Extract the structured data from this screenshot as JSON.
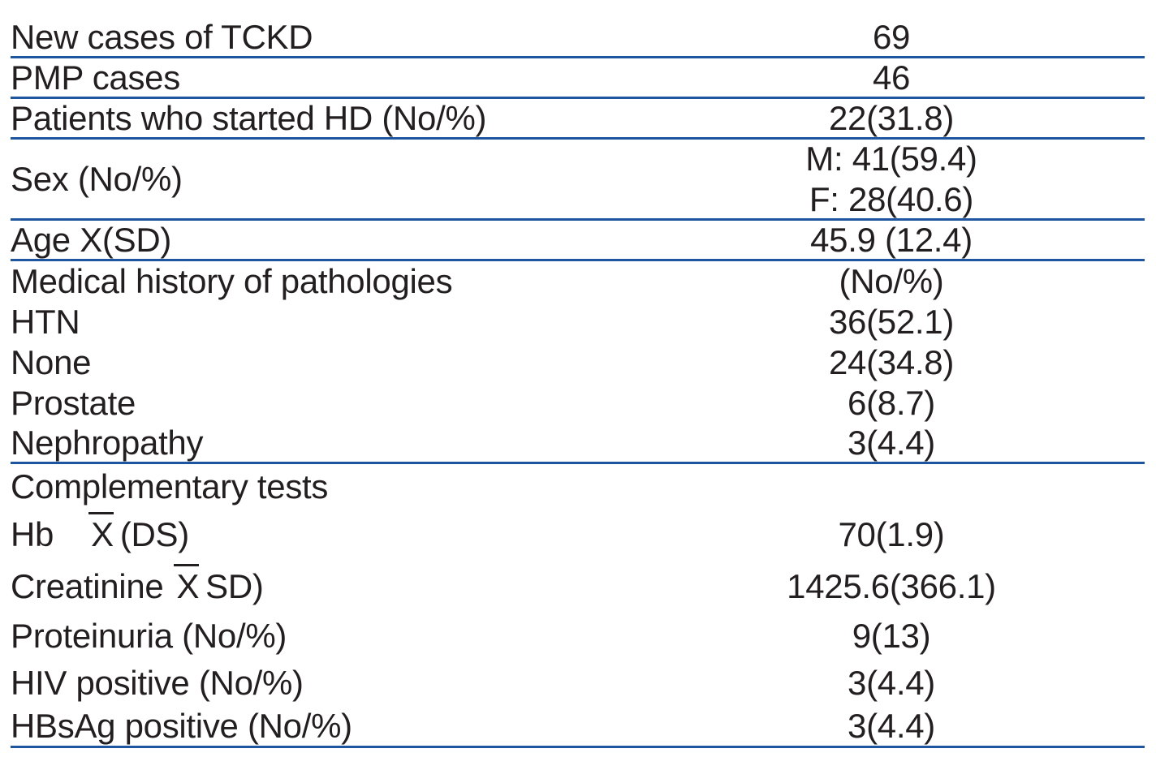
{
  "table": {
    "colors": {
      "separator": "#1e55a0",
      "text": "#231f20"
    },
    "rows": [
      {
        "label": "New cases of TCKD",
        "value": "69"
      },
      {
        "label": "PMP cases",
        "value": "46"
      },
      {
        "label": "Patients who started HD (No/%)",
        "value": "22(31.8)"
      },
      {
        "label": "Sex (No/%)",
        "value_line1": "M: 41(59.4)",
        "value_line2": "F: 28(40.6)"
      },
      {
        "label": "Age X(SD)",
        "value": "45.9 (12.4)"
      },
      {
        "label": "Medical history of pathologies",
        "value": "(No/%)"
      },
      {
        "label": "HTN",
        "value": "36(52.1)"
      },
      {
        "label": "None",
        "value": "24(34.8)"
      },
      {
        "label": "Prostate",
        "value": "6(8.7)"
      },
      {
        "label": "Nephropathy",
        "value": "3(4.4)"
      },
      {
        "label": "Complementary tests",
        "value": ""
      },
      {
        "label_prefix": "Hb",
        "mean_symbol": "X",
        "label_suffix": "(DS)",
        "value": "70(1.9)"
      },
      {
        "label_prefix": "Creatinine",
        "mean_symbol": "X",
        "label_suffix": "SD)",
        "value": "1425.6(366.1)"
      },
      {
        "label": "Proteinuria (No/%)",
        "value": "9(13)"
      },
      {
        "label": "HIV positive (No/%)",
        "value": "3(4.4)"
      },
      {
        "label": "HBsAg positive (No/%)",
        "value": "3(4.4)"
      }
    ]
  }
}
